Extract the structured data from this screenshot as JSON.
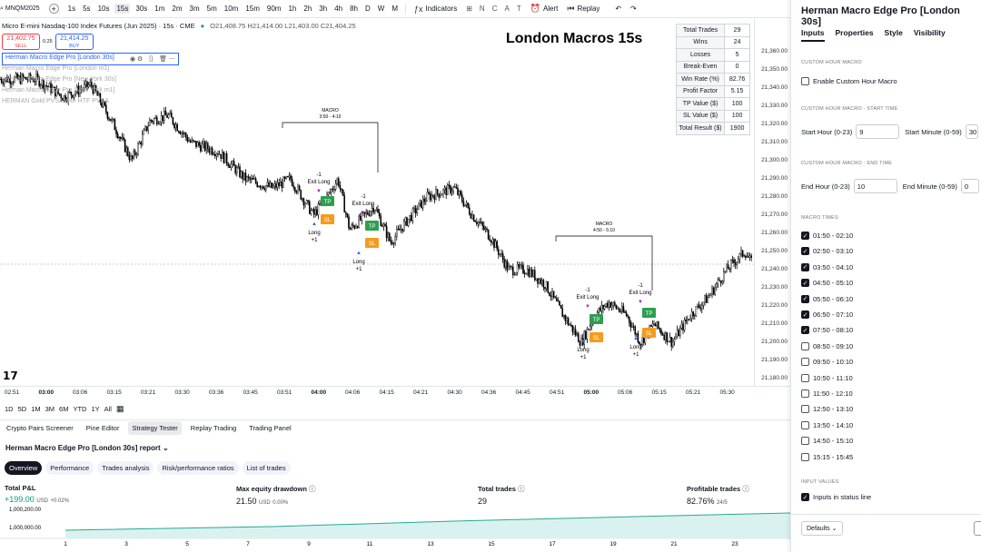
{
  "toolbar": {
    "symbol": "MNQM2025",
    "timeframes": [
      "1s",
      "5s",
      "10s",
      "15s",
      "30s",
      "1m",
      "2m",
      "3m",
      "5m",
      "10m",
      "15m",
      "90m",
      "1h",
      "2h",
      "3h",
      "4h",
      "8h",
      "D",
      "W",
      "M"
    ],
    "active_timeframe": "15s",
    "indicators_label": "Indicators",
    "alert_label": "Alert",
    "replay_label": "Replay"
  },
  "legend": {
    "title": "Micro E-mini Nasdaq-100 Index Futures (Jun 2025) · 15s · CME",
    "ohlc": "O21,408.75 H21,414.00 L21,403.00 C21,404.25"
  },
  "sell": {
    "price": "21,402.75",
    "label": "SELL"
  },
  "buy": {
    "price": "21,414.25",
    "label": "BUY"
  },
  "spread": "0.25",
  "indicators": {
    "main": "Herman Macro Edge Pro [London 30s]",
    "others": [
      "Herman Macro Edge Pro [London m1]",
      "Herman Macro Edge Pro [New York 30s]",
      "Herman Macro Edge Pro [New York m1]",
      "HERMAN Gold PVSA with HTF PVSA"
    ]
  },
  "chart_title": "London Macros 15s",
  "stats": [
    {
      "label": "Total Trades",
      "value": "29"
    },
    {
      "label": "Wins",
      "value": "24"
    },
    {
      "label": "Losses",
      "value": "5"
    },
    {
      "label": "Break-Even",
      "value": "0"
    },
    {
      "label": "Win Rate (%)",
      "value": "82.76"
    },
    {
      "label": "Profit Factor",
      "value": "5.15"
    },
    {
      "label": "TP Value ($)",
      "value": "100"
    },
    {
      "label": "SL Value ($)",
      "value": "100"
    },
    {
      "label": "Total Result ($)",
      "value": "1900"
    }
  ],
  "annotations": {
    "macro1_title": "MACRO",
    "macro1_time": "3:50 - 4:10",
    "macro2_title": "MACRO",
    "macro2_time": "4:50 - 5:10",
    "exit_long": "Exit Long",
    "minus_one": "-1",
    "long": "Long",
    "plus_one": "+1",
    "tp": "TP",
    "sl": "SL"
  },
  "price_ticks": [
    "21,360.00",
    "21,350.00",
    "21,340.00",
    "21,330.00",
    "21,320.00",
    "21,310.00",
    "21,300.00",
    "21,290.00",
    "21,280.00",
    "21,270.00",
    "21,260.00",
    "21,250.00",
    "21,240.00",
    "21,230.00",
    "21,220.00",
    "21,210.00",
    "21,200.00",
    "21,190.00",
    "21,180.00"
  ],
  "time_ticks": [
    "02:51",
    "03:00",
    "03:06",
    "03:15",
    "03:21",
    "03:30",
    "03:36",
    "03:45",
    "03:51",
    "04:00",
    "04:06",
    "04:15",
    "04:21",
    "04:30",
    "04:36",
    "04:45",
    "04:51",
    "05:00",
    "05:06",
    "05:15",
    "05:21",
    "05:30"
  ],
  "ranges": [
    "1D",
    "5D",
    "1M",
    "3M",
    "6M",
    "YTD",
    "1Y",
    "All"
  ],
  "bottom_tabs": [
    "Crypto Pairs Screener",
    "Pine Editor",
    "Strategy Tester",
    "Replay Trading",
    "Trading Panel"
  ],
  "active_bottom_tab": "Strategy Tester",
  "report_title": "Herman Macro Edge Pro [London 30s] report",
  "report_tabs": [
    "Overview",
    "Performance",
    "Trades analysis",
    "Risk/performance ratios",
    "List of trades"
  ],
  "metrics": {
    "pnl": {
      "label": "Total P&L",
      "value": "+199.00",
      "unit": "USD",
      "pct": "+0.02%"
    },
    "drawdown": {
      "label": "Max equity drawdown",
      "value": "21.50",
      "unit": "USD",
      "pct": "0.00%"
    },
    "trades": {
      "label": "Total trades",
      "value": "29"
    },
    "profitable": {
      "label": "Profitable trades",
      "value": "82.76%",
      "sub": "24/5"
    }
  },
  "equity_axis": [
    "1,000,200.00",
    "1,000,000.00"
  ],
  "equity_x": [
    "1",
    "3",
    "5",
    "7",
    "9",
    "11",
    "13",
    "15",
    "17",
    "19",
    "21",
    "23"
  ],
  "panel": {
    "title": "Herman Macro Edge Pro [London 30s]",
    "tabs": [
      "Inputs",
      "Properties",
      "Style",
      "Visibility"
    ],
    "sec_custom": "CUSTOM HOUR MACRO",
    "enable_label": "Enable Custom Hour Macro",
    "sec_start": "CUSTOM HOUR MACRO - START TIME",
    "start_hour_label": "Start Hour (0-23)",
    "start_hour": "9",
    "start_min_label": "Start Minute (0-59)",
    "start_min": "30",
    "sec_end": "CUSTOM HOUR MACRO - END TIME",
    "end_hour_label": "End Hour (0-23)",
    "end_hour": "10",
    "end_min_label": "End Minute (0-59)",
    "end_min": "0",
    "sec_macro": "MACRO TIMES",
    "macros": [
      {
        "label": "01:50 - 02:10",
        "checked": true
      },
      {
        "label": "02:50 - 03:10",
        "checked": true
      },
      {
        "label": "03:50 - 04:10",
        "checked": true
      },
      {
        "label": "04:50 - 05:10",
        "checked": true
      },
      {
        "label": "05:50 - 06:10",
        "checked": true
      },
      {
        "label": "06:50 - 07:10",
        "checked": true
      },
      {
        "label": "07:50 - 08:10",
        "checked": true
      },
      {
        "label": "08:50 - 09:10",
        "checked": false
      },
      {
        "label": "09:50 - 10:10",
        "checked": false
      },
      {
        "label": "10:50 - 11:10",
        "checked": false
      },
      {
        "label": "11:50 - 12:10",
        "checked": false
      },
      {
        "label": "12:50 - 13:10",
        "checked": false
      },
      {
        "label": "13:50 - 14:10",
        "checked": false
      },
      {
        "label": "14:50 - 15:10",
        "checked": false
      },
      {
        "label": "15:15 - 15:45",
        "checked": false
      }
    ],
    "sec_input": "INPUT VALUES",
    "status_line_label": "Inputs in status line",
    "defaults": "Defaults"
  }
}
